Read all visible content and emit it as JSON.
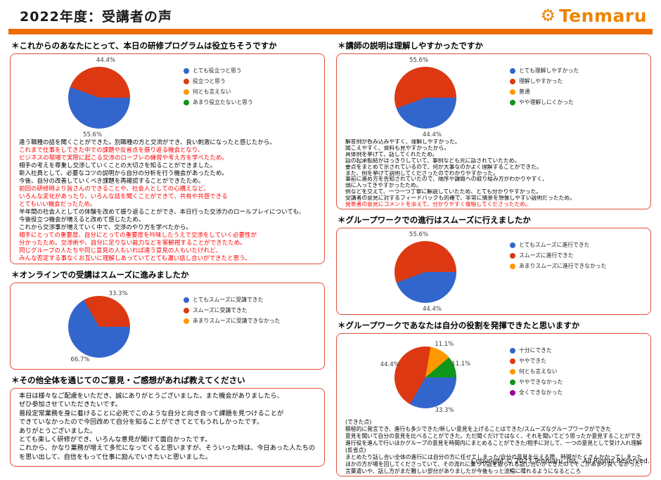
{
  "header": {
    "title": "2022年度：受講者の声",
    "logo_text": "Tenmaru"
  },
  "colors": {
    "accent_bar": "#ED6C00",
    "logo": "#F08300",
    "box_border": "#E0503C",
    "comment_red": "#FF0000",
    "pie_blue": "#3366CC",
    "pie_red": "#DC3912",
    "pie_orange": "#FF9900",
    "pie_green": "#109618",
    "pie_purple": "#990099"
  },
  "footer": {
    "text": "Copyright © 2023 Tenmaru. ins   All Rights Reserved."
  },
  "sections": {
    "program_useful": {
      "heading": "＊これからのあなたにとって、本日の研修プログラムは役立ちそうですか",
      "comments": [
        {
          "text": "違う職種の話を聞くことができた。別職種の方と交流ができ、良い刺激になったと感じたから。",
          "color": "black"
        },
        {
          "text": "これまで仕事をしてきた中での課題や反省点を振り返る機会となり、",
          "color": "red"
        },
        {
          "text": "ビジネスの現場で実際に起こる交渉のロープレの練習や考え方を学べたため。",
          "color": "red"
        },
        {
          "text": "相手の考えを尊重し交渉していくことの大切さを知ることができました。",
          "color": "black"
        },
        {
          "text": "新入社員として、必要なコツの説明から自分の分析を行う機会があったため。",
          "color": "black"
        },
        {
          "text": "今後、自分の改善していくべき課題を再確認することができたため。",
          "color": "black"
        },
        {
          "text": "前回の研修時より皆さんのできることや、社会人としての心構えなど、",
          "color": "red"
        },
        {
          "text": "いろんな変化があったり、いろんな話を聞くことができて、共有や共感できる",
          "color": "red"
        },
        {
          "text": "とてもいい機会だったため。",
          "color": "red"
        },
        {
          "text": "半年間の社会人としての体験を改めて振り返ることができ、本日行った交渉力のロールプレイについても、",
          "color": "black"
        },
        {
          "text": "今後役立つ機会が増えると改めて感じたため。",
          "color": "black"
        },
        {
          "text": "これから交渉事が増えていく中で、交渉のやり方を学べたから。",
          "color": "black"
        },
        {
          "text": "相手にとっての重要度、自分にとっての重要度を吟味したうえで交渉をしていく必要性が",
          "color": "red"
        },
        {
          "text": "分かったため。交渉術や、自分に足りない能力などを客観視することができたため。",
          "color": "red"
        },
        {
          "text": "同じグループの人たちや同じ意見の人もいれば違う意見の人もいたけれど、",
          "color": "red"
        },
        {
          "text": "みんな否定する事なくお互いに理解しあっていてとても濃い話し合いができたと思う。",
          "color": "red"
        }
      ]
    },
    "online_smooth": {
      "heading": "＊オンラインでの受講はスムーズに進みましたか"
    },
    "overall_feedback": {
      "heading": "＊その他全体を通じてのご意見・ご感想があれば教えてください",
      "comments": [
        {
          "text": "本日は様々なご配慮をいただき、誠にありがとうございました。また機会がありましたら、",
          "color": "black"
        },
        {
          "text": "ぜひ参加させていただきたいです。",
          "color": "black"
        },
        {
          "text": "普段定常業務を身に着けることに必死でこのような自分と向き合って課題を見つけることが",
          "color": "black"
        },
        {
          "text": "できていなかったので今回改めて自分を知ることができてとてもうれしかったです。",
          "color": "black"
        },
        {
          "text": "ありがとうございました。",
          "color": "black"
        },
        {
          "text": "とても楽しく研修ができ、いろんな意見が聞けて面白かったです。",
          "color": "black"
        },
        {
          "text": "これから、かなり業務が増えて多忙になってくると思いますが、そういった時は、今日あった人たちのこと",
          "color": "black"
        },
        {
          "text": "を思い出して、自信をもって仕事に励んでいきたいと思いました。",
          "color": "black"
        }
      ]
    },
    "instructor_clarity": {
      "heading": "＊講師の説明は理解しやすかったですか",
      "comments": [
        {
          "text": "解答例が呑み込みやすく、理解しやすかった。",
          "color": "black"
        },
        {
          "text": "聞こえやすく、資料も見やすかったから。",
          "color": "black"
        },
        {
          "text": "具体例を挙げて、話してくれたため。",
          "color": "black"
        },
        {
          "text": "話の起承転結がはっきりしていて、事例なども元に話されていたため。",
          "color": "black"
        },
        {
          "text": "要点をまとめて示されているので、何が大事なのかよく理解することができた。",
          "color": "black"
        },
        {
          "text": "また、例を挙げて説明してくださったのでわかりやすかった。",
          "color": "black"
        },
        {
          "text": "事前に進め方を告知されていたので、順序や課題への取り組み方がわかりやすく、",
          "color": "black"
        },
        {
          "text": "頭に入ってきやすかったため。",
          "color": "black"
        },
        {
          "text": "例などを交えて、一つ一つ丁寧に解説していたため、とても分かりやすかった。",
          "color": "black"
        },
        {
          "text": "受講者の意見に対するフィードバックも的確で、非常に情景を想像しやすい説明だったため。",
          "color": "black"
        },
        {
          "text": "発表者の意見にコメントを添えて、分かりやすく復唱してくださったため。",
          "color": "red"
        }
      ]
    },
    "groupwork_smooth": {
      "heading": "＊グループワークでの進行はスムーズに行えましたか"
    },
    "groupwork_role": {
      "heading": "＊グループワークであなたは自分の役割を発揮できたと思いますか",
      "comments": [
        {
          "text": "(できた点)",
          "color": "black"
        },
        {
          "text": "積極的に発言でき、進行も多少できた/新しい意見を上げることはできた/スムーズなグループワークができた",
          "color": "black"
        },
        {
          "text": "意見を聞いて自分の意見を比べることができた。ただ聞くだけではなく、それを聞いてどう思ったか意見することができた",
          "color": "black"
        },
        {
          "text": "進行役を進んで行いほかグループの意見を時間内にまとめることができた/相手に対して、一つの意見として受け入れ理解した",
          "color": "black"
        },
        {
          "text": "(反省点)",
          "color": "black"
        },
        {
          "text": "まとめたり話し合い全体の進行には自分の方に任せてしまった/自分の意見を伝える際、時間がたくさんかかってしまったこと",
          "color": "black"
        },
        {
          "text": "ほかの方が場を回してくださっていて、その流れに乗って話を振られる話し合いができたのでそこがあまり良くなかったと思った",
          "color": "black"
        },
        {
          "text": "言葉遣いや、話し方がまだ難しい部分がありましたが今後もっと流暢に喋れるようになるところ",
          "color": "black"
        }
      ]
    }
  },
  "chart_data": [
    {
      "type": "pie",
      "title": "これからのあなたにとって、本日の研修プログラムは役立ちそうですか",
      "labels": [
        "とても役立つと思う",
        "役立つと思う",
        "何とも言えない",
        "あまり役立たないと思う"
      ],
      "values": [
        55.6,
        44.4,
        0,
        0
      ],
      "colors": [
        "#3366CC",
        "#DC3912",
        "#FF9900",
        "#109618"
      ],
      "legend_position": "right"
    },
    {
      "type": "pie",
      "title": "講師の説明は理解しやすかったですか",
      "labels": [
        "とても理解しやすかった",
        "理解しやすかった",
        "普通",
        "やや理解しにくかった"
      ],
      "values": [
        44.4,
        55.6,
        0,
        0
      ],
      "colors": [
        "#3366CC",
        "#DC3912",
        "#FF9900",
        "#109618"
      ],
      "legend_position": "right"
    },
    {
      "type": "pie",
      "title": "グループワークでの進行はスムーズに行えましたか",
      "labels": [
        "とてもスムーズに進行できた",
        "スムーズに進行できた",
        "あまりスムーズに進行できなかった"
      ],
      "values": [
        44.4,
        55.6,
        0
      ],
      "colors": [
        "#3366CC",
        "#DC3912",
        "#FF9900"
      ],
      "legend_position": "right"
    },
    {
      "type": "pie",
      "title": "オンラインでの受講はスムーズに進みましたか",
      "labels": [
        "とてもスムーズに受講できた",
        "スムーズに受講できた",
        "あまりスムーズに受講できなかった"
      ],
      "values": [
        66.7,
        33.3,
        0
      ],
      "colors": [
        "#3366CC",
        "#DC3912",
        "#FF9900"
      ],
      "legend_position": "right"
    },
    {
      "type": "pie",
      "title": "グループワークであなたは自分の役割を発揮できたと思いますか",
      "labels": [
        "十分にできた",
        "ややできた",
        "何とも言えない",
        "ややできなかった",
        "全くできなかった"
      ],
      "values": [
        33.3,
        44.4,
        11.1,
        11.1,
        0
      ],
      "colors": [
        "#3366CC",
        "#DC3912",
        "#FF9900",
        "#109618",
        "#990099"
      ],
      "legend_position": "right"
    }
  ]
}
